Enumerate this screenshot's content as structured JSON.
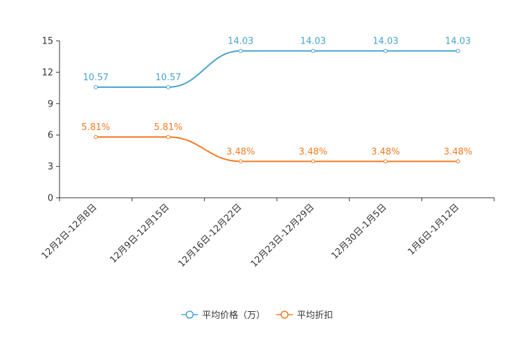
{
  "chart_data": {
    "type": "line",
    "categories": [
      "12月2日-12月8日",
      "12月9日-12月15日",
      "12月16日-12月22日",
      "12月23日-12月29日",
      "12月30日-1月5日",
      "1月6日-1月12日"
    ],
    "ylim": [
      0,
      15
    ],
    "yticks": [
      0,
      3,
      6,
      9,
      12,
      15
    ],
    "series": [
      {
        "name": "平均价格（万）",
        "color": "#4aa3cd",
        "values": [
          10.57,
          10.57,
          14.03,
          14.03,
          14.03,
          14.03
        ],
        "labels": [
          "10.57",
          "10.57",
          "14.03",
          "14.03",
          "14.03",
          "14.03"
        ]
      },
      {
        "name": "平均折扣",
        "color": "#f47a20",
        "values": [
          5.81,
          5.81,
          3.48,
          3.48,
          3.48,
          3.48
        ],
        "labels": [
          "5.81%",
          "5.81%",
          "3.48%",
          "3.48%",
          "3.48%",
          "3.48%"
        ]
      }
    ],
    "legend_position": "bottom-center"
  }
}
